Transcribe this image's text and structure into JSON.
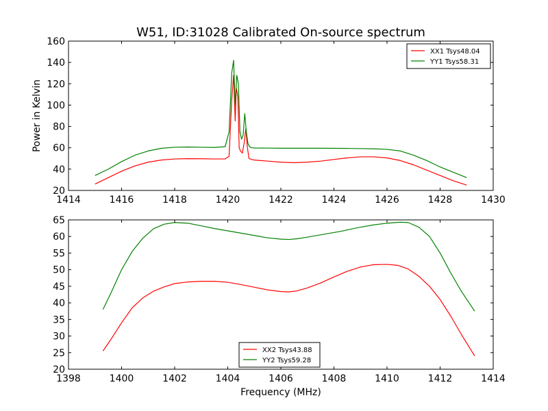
{
  "chart_data": [
    {
      "type": "line",
      "title": "W51, ID:31028 Calibrated On-source spectrum",
      "xlabel": "",
      "ylabel": "Power in Kelvin",
      "xlim": [
        1414,
        1430
      ],
      "ylim": [
        20,
        160
      ],
      "xticks": [
        1414,
        1416,
        1418,
        1420,
        1422,
        1424,
        1426,
        1428,
        1430
      ],
      "yticks": [
        20,
        40,
        60,
        80,
        100,
        120,
        140,
        160
      ],
      "grid": false,
      "legend_position": "top-right",
      "series": [
        {
          "name": "XX1 Tsys48.04",
          "color": "#ff0000",
          "x": [
            1415.0,
            1415.5,
            1416.0,
            1416.5,
            1417.0,
            1417.5,
            1418.0,
            1418.5,
            1419.0,
            1419.5,
            1419.9,
            1420.05,
            1420.15,
            1420.22,
            1420.28,
            1420.32,
            1420.38,
            1420.43,
            1420.48,
            1420.55,
            1420.62,
            1420.68,
            1420.74,
            1420.8,
            1420.9,
            1421.0,
            1421.5,
            1422.0,
            1422.5,
            1423.0,
            1423.5,
            1424.0,
            1424.5,
            1425.0,
            1425.5,
            1426.0,
            1426.5,
            1427.0,
            1427.5,
            1428.0,
            1428.5,
            1429.0
          ],
          "y": [
            26,
            32,
            38,
            43,
            46.5,
            48.5,
            49.5,
            49.8,
            49.7,
            49.5,
            49.5,
            52,
            105,
            128,
            85,
            116,
            108,
            60,
            57,
            55,
            65,
            78,
            60,
            50,
            49,
            48.5,
            47.5,
            46.5,
            46,
            46.5,
            47.5,
            49,
            50.5,
            51.5,
            51.5,
            50.5,
            48,
            44,
            39,
            34,
            29,
            25
          ]
        },
        {
          "name": "YY1 Tsys58.31",
          "color": "#008000",
          "x": [
            1415.0,
            1415.5,
            1416.0,
            1416.5,
            1417.0,
            1417.5,
            1418.0,
            1418.5,
            1419.0,
            1419.5,
            1419.9,
            1420.05,
            1420.15,
            1420.22,
            1420.28,
            1420.34,
            1420.4,
            1420.46,
            1420.52,
            1420.58,
            1420.64,
            1420.7,
            1420.76,
            1420.82,
            1420.9,
            1421.0,
            1421.5,
            1422.0,
            1422.5,
            1423.0,
            1423.5,
            1424.0,
            1424.5,
            1425.0,
            1425.5,
            1426.0,
            1426.5,
            1427.0,
            1427.5,
            1428.0,
            1428.5,
            1429.0
          ],
          "y": [
            34,
            40,
            47,
            53,
            57,
            59.5,
            60.5,
            60.7,
            60.5,
            60.3,
            61,
            75,
            130,
            142,
            100,
            128,
            120,
            75,
            68,
            72,
            92,
            75,
            64,
            61,
            60,
            59.8,
            59.7,
            59.6,
            59.6,
            59.6,
            59.6,
            59.5,
            59.4,
            59.2,
            59,
            58.5,
            57,
            53,
            48,
            42,
            37,
            32
          ]
        }
      ]
    },
    {
      "type": "line",
      "title": "",
      "xlabel": "Frequency (MHz)",
      "ylabel": "",
      "xlim": [
        1398,
        1414
      ],
      "ylim": [
        20,
        65
      ],
      "xticks": [
        1398,
        1400,
        1402,
        1404,
        1406,
        1408,
        1410,
        1412,
        1414
      ],
      "yticks": [
        20,
        25,
        30,
        35,
        40,
        45,
        50,
        55,
        60,
        65
      ],
      "grid": false,
      "legend_position": "bottom-center",
      "series": [
        {
          "name": "XX2 Tsys43.88",
          "color": "#ff0000",
          "x": [
            1399.3,
            1399.6,
            1400.0,
            1400.4,
            1400.8,
            1401.2,
            1401.6,
            1402.0,
            1402.5,
            1403.0,
            1403.5,
            1404.0,
            1404.5,
            1405.0,
            1405.5,
            1406.0,
            1406.3,
            1406.6,
            1407.0,
            1407.5,
            1408.0,
            1408.5,
            1409.0,
            1409.5,
            1410.0,
            1410.4,
            1410.8,
            1411.2,
            1411.6,
            1412.0,
            1412.4,
            1412.8,
            1413.3
          ],
          "y": [
            25.5,
            29,
            34,
            38.5,
            41.5,
            43.5,
            44.8,
            45.8,
            46.3,
            46.5,
            46.5,
            46.2,
            45.5,
            44.7,
            43.9,
            43.4,
            43.3,
            43.6,
            44.5,
            46,
            47.8,
            49.5,
            50.8,
            51.5,
            51.6,
            51.3,
            50.2,
            48,
            45,
            41,
            36,
            30.5,
            24
          ]
        },
        {
          "name": "YY2 Tsys59.28",
          "color": "#008000",
          "x": [
            1399.3,
            1399.6,
            1400.0,
            1400.4,
            1400.8,
            1401.2,
            1401.6,
            1402.0,
            1402.5,
            1403.0,
            1403.5,
            1404.0,
            1404.5,
            1405.0,
            1405.5,
            1406.0,
            1406.3,
            1406.6,
            1407.0,
            1407.5,
            1408.0,
            1408.3,
            1408.5,
            1409.0,
            1409.5,
            1410.0,
            1410.5,
            1410.8,
            1411.2,
            1411.6,
            1412.0,
            1412.4,
            1412.8,
            1413.3
          ],
          "y": [
            38,
            43,
            50,
            55.5,
            59.5,
            62.3,
            63.7,
            64.2,
            64,
            63.2,
            62.4,
            61.7,
            61,
            60.3,
            59.6,
            59.2,
            59.1,
            59.3,
            59.8,
            60.5,
            61.2,
            61.6,
            62,
            62.8,
            63.5,
            64,
            64.3,
            64.2,
            62.8,
            60,
            55,
            49,
            43.5,
            37.5
          ]
        }
      ]
    }
  ]
}
